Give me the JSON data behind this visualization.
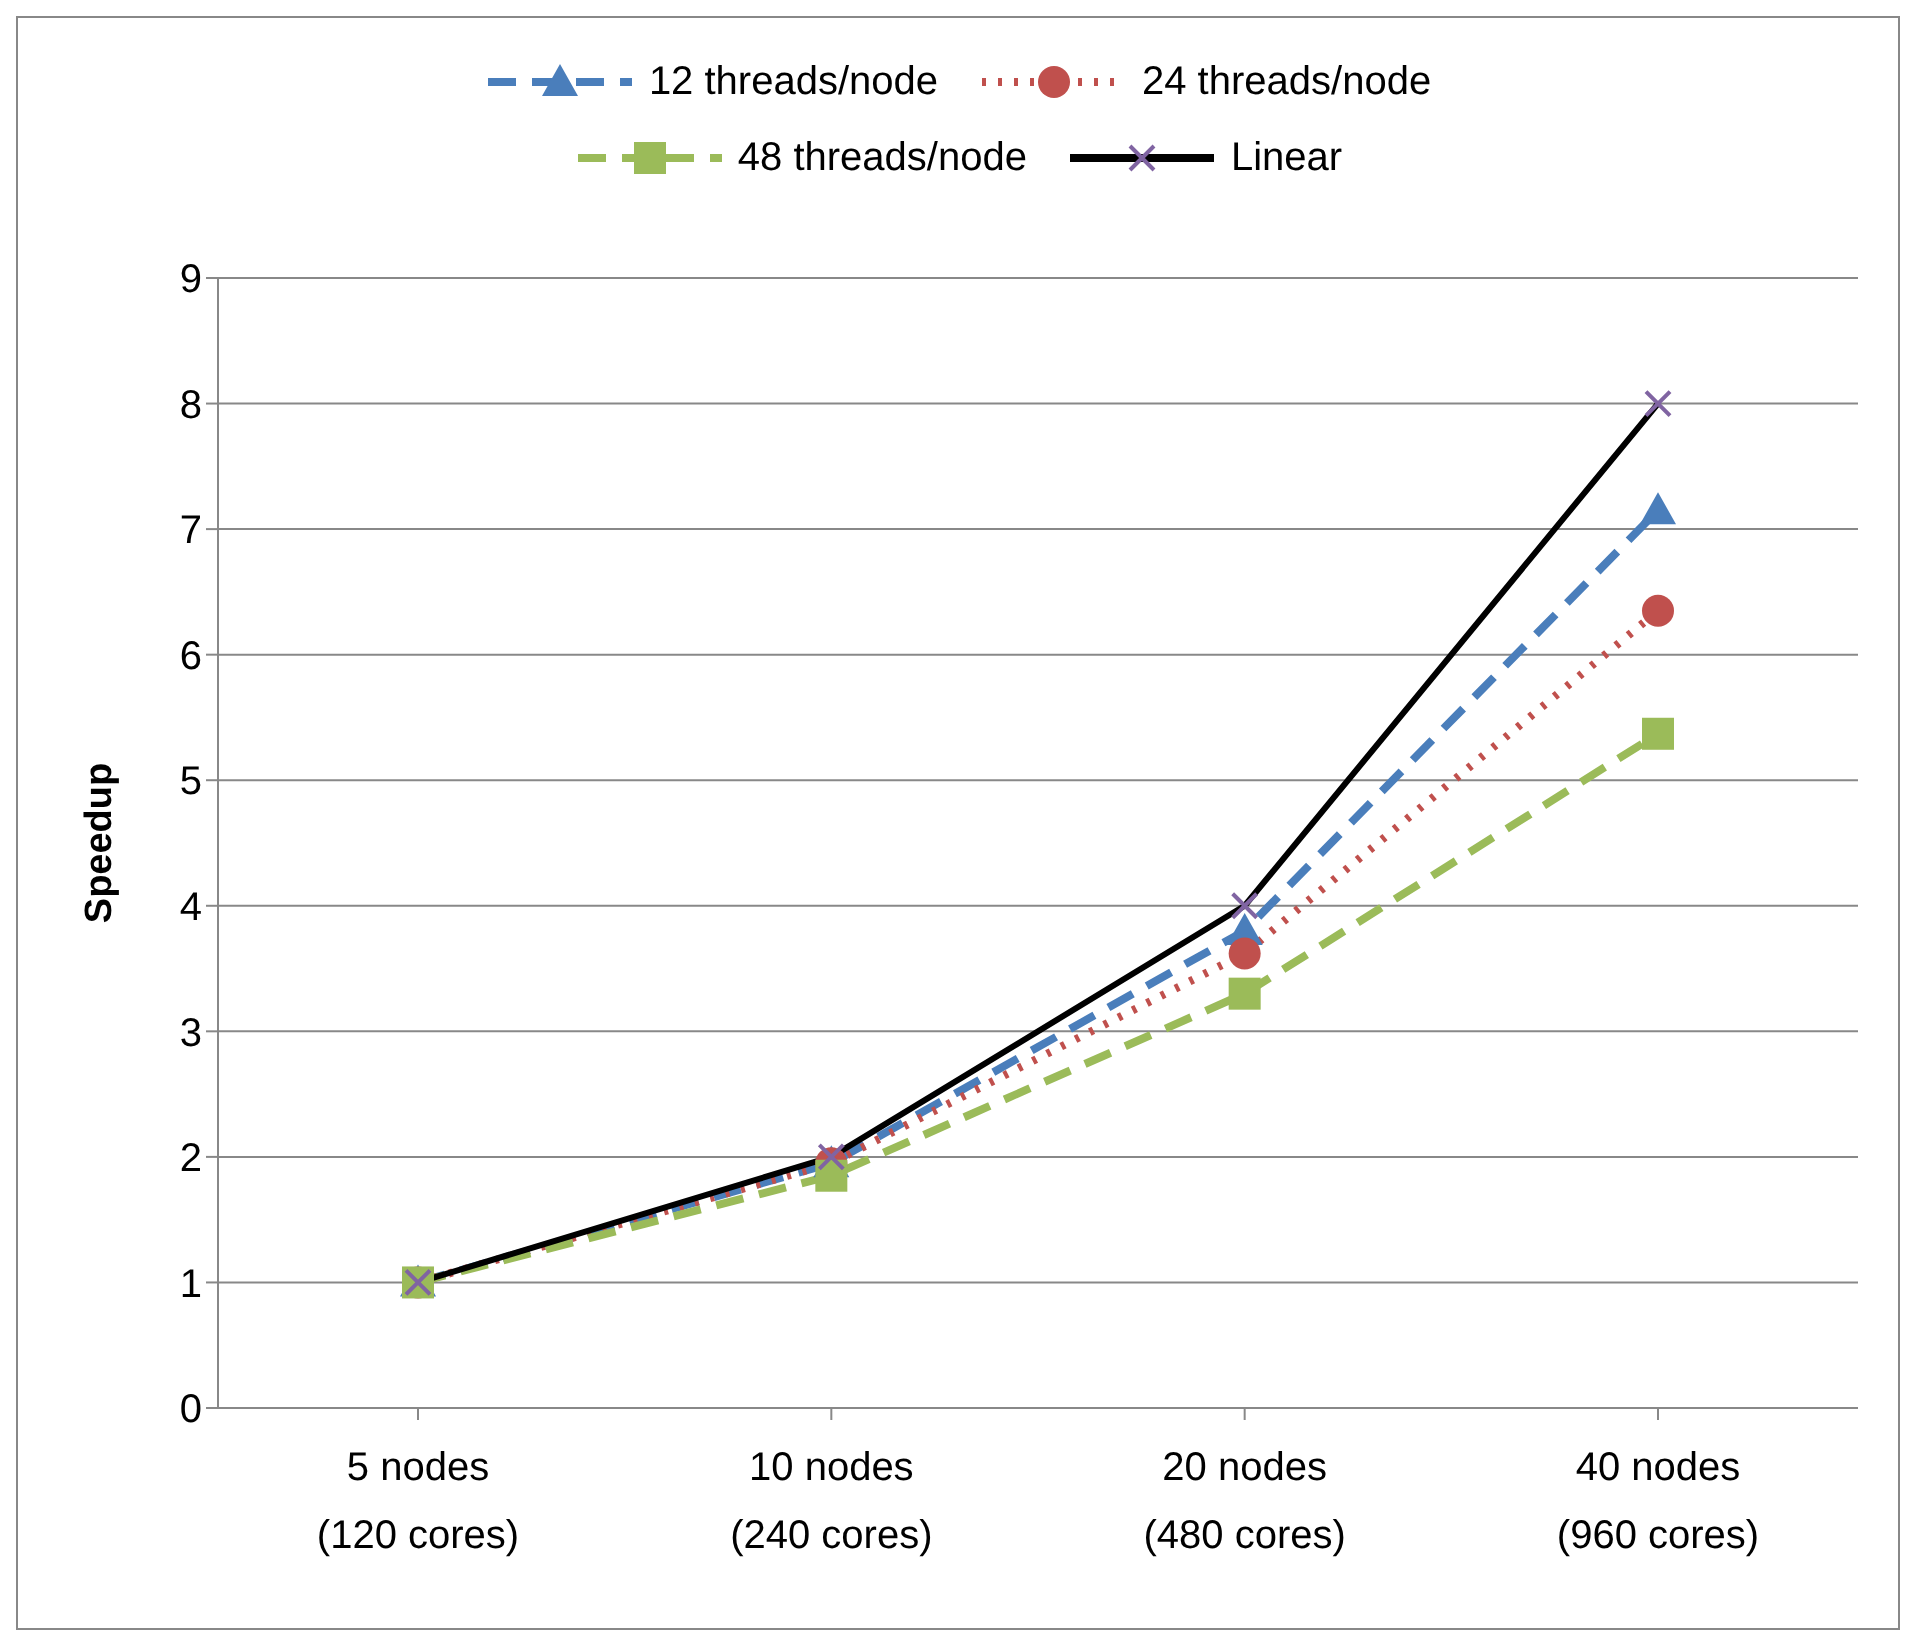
{
  "chart_data": {
    "type": "line",
    "ylabel": "Speedup",
    "categories": [
      "5 nodes\n(120 cores)",
      "10 nodes\n(240 cores)",
      "20 nodes\n(480 cores)",
      "40 nodes\n(960 cores)"
    ],
    "series": [
      {
        "name": "12 threads/node",
        "color": "#4a7ebb",
        "values": [
          1,
          1.95,
          3.8,
          7.15
        ],
        "marker": "triangle",
        "line_style": "dashed"
      },
      {
        "name": "24 threads/node",
        "color": "#c0504d",
        "values": [
          1,
          1.95,
          3.62,
          6.35
        ],
        "marker": "circle",
        "line_style": "dotted"
      },
      {
        "name": "48 threads/node",
        "color": "#9bbb59",
        "values": [
          1,
          1.85,
          3.3,
          5.37
        ],
        "marker": "square",
        "line_style": "dashed"
      },
      {
        "name": "Linear",
        "color": "#000000",
        "values": [
          1,
          2,
          4,
          8
        ],
        "marker": "cross",
        "line_style": "solid"
      }
    ],
    "ylim": [
      0,
      9
    ],
    "yticks": [
      0,
      1,
      2,
      3,
      4,
      5,
      6,
      7,
      8,
      9
    ],
    "grid": "y",
    "legend": "top"
  }
}
